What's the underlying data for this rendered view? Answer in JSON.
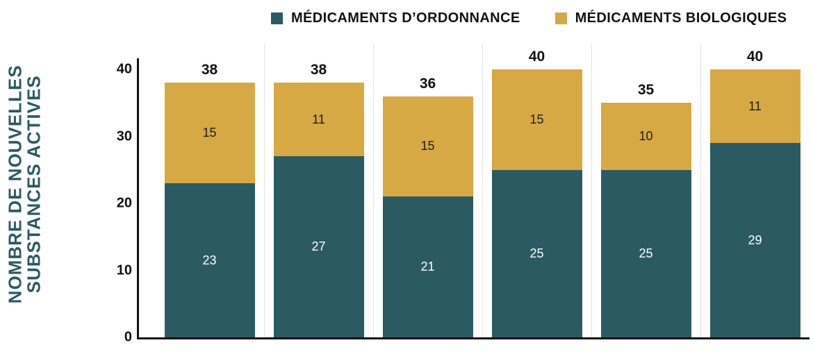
{
  "colors": {
    "teal": "#2C5A63",
    "gold": "#D6A945",
    "text": "#121212",
    "grid": "#E2E2E2",
    "background": "#FFFFFF",
    "teal_label_text": "#FFFFFF",
    "gold_label_text": "#1D1D1D"
  },
  "legend": {
    "items": [
      {
        "label": "MÉDICAMENTS D’ORDONNANCE",
        "color": "#2C5A63"
      },
      {
        "label": "MÉDICAMENTS BIOLOGIQUES",
        "color": "#D6A945"
      }
    ]
  },
  "y_axis": {
    "title_line1": "NOMBRE DE NOUVELLES",
    "title_line2": "SUBSTANCES ACTIVES"
  },
  "chart_data": {
    "type": "bar",
    "stacked": true,
    "title": "",
    "xlabel": "",
    "ylabel": "NOMBRE DE NOUVELLES SUBSTANCES ACTIVES",
    "ylim": [
      0,
      40
    ],
    "yticks": [
      0,
      10,
      20,
      30,
      40
    ],
    "categories": [
      "",
      "",
      "",
      "",
      "",
      ""
    ],
    "series": [
      {
        "name": "MÉDICAMENTS D’ORDONNANCE",
        "color": "#2C5A63",
        "values": [
          23,
          27,
          21,
          25,
          25,
          29
        ]
      },
      {
        "name": "MÉDICAMENTS BIOLOGIQUES",
        "color": "#D6A945",
        "values": [
          15,
          11,
          15,
          15,
          10,
          11
        ]
      }
    ],
    "totals": [
      38,
      38,
      36,
      40,
      35,
      40
    ],
    "segment_labels_shown": true,
    "grid": "vertical-column-separators",
    "legend_position": "top-center"
  }
}
